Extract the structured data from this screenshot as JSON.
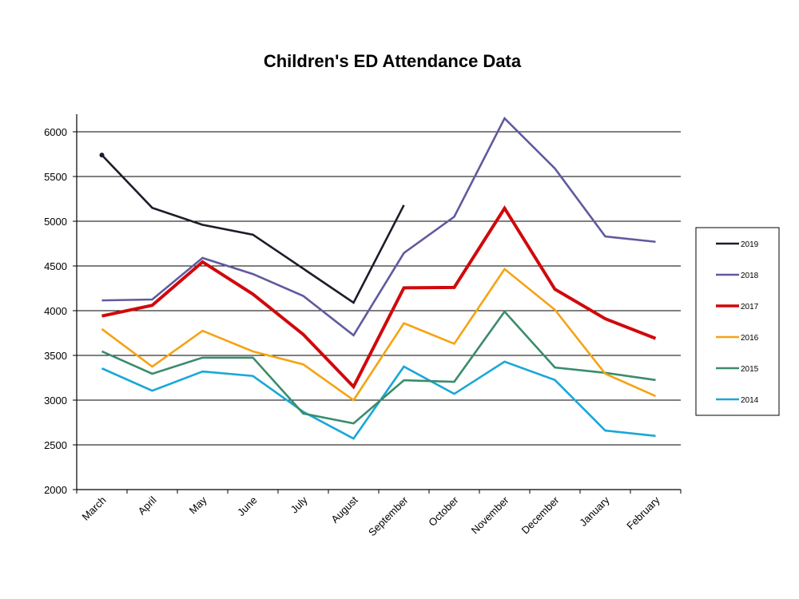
{
  "chart_data": {
    "type": "line",
    "title": "Children's ED Attendance Data",
    "xlabel": "",
    "ylabel": "",
    "categories": [
      "March",
      "April",
      "May",
      "June",
      "July",
      "August",
      "September",
      "October",
      "November",
      "December",
      "January",
      "February"
    ],
    "ylim": [
      2000,
      6200
    ],
    "yticks": [
      2000,
      2500,
      3000,
      3500,
      4000,
      4500,
      5000,
      5500,
      6000
    ],
    "ytick_labels": [
      "2000",
      "2500",
      "3000",
      "3500",
      "4000",
      "4500",
      "5000",
      "5500",
      "6000"
    ],
    "grid": true,
    "legend_position": "right",
    "series": [
      {
        "name": "2019",
        "color": "#1c1c2a",
        "values": [
          5740,
          5150,
          4960,
          4850,
          4470,
          4090,
          5180,
          null,
          null,
          null,
          null,
          null
        ]
      },
      {
        "name": "2018",
        "color": "#5f5a9e",
        "values": [
          4115,
          4125,
          4590,
          4410,
          4165,
          3725,
          4645,
          5050,
          6150,
          5590,
          4830,
          4770
        ]
      },
      {
        "name": "2017",
        "color": "#d0090c",
        "values": [
          3940,
          4060,
          4545,
          4185,
          3735,
          3150,
          4255,
          4260,
          5145,
          4240,
          3910,
          3690
        ]
      },
      {
        "name": "2016",
        "color": "#f5a313",
        "values": [
          3795,
          3375,
          3775,
          3545,
          3400,
          3000,
          3860,
          3630,
          4465,
          4010,
          3295,
          3045
        ]
      },
      {
        "name": "2015",
        "color": "#3b8c6b",
        "values": [
          3545,
          3295,
          3475,
          3475,
          2850,
          2740,
          3222,
          3205,
          3990,
          3365,
          3305,
          3225
        ]
      },
      {
        "name": "2014",
        "color": "#1aa7d8",
        "values": [
          3355,
          3105,
          3320,
          3270,
          2870,
          2570,
          3375,
          3070,
          3430,
          3225,
          2660,
          2600
        ]
      }
    ]
  }
}
